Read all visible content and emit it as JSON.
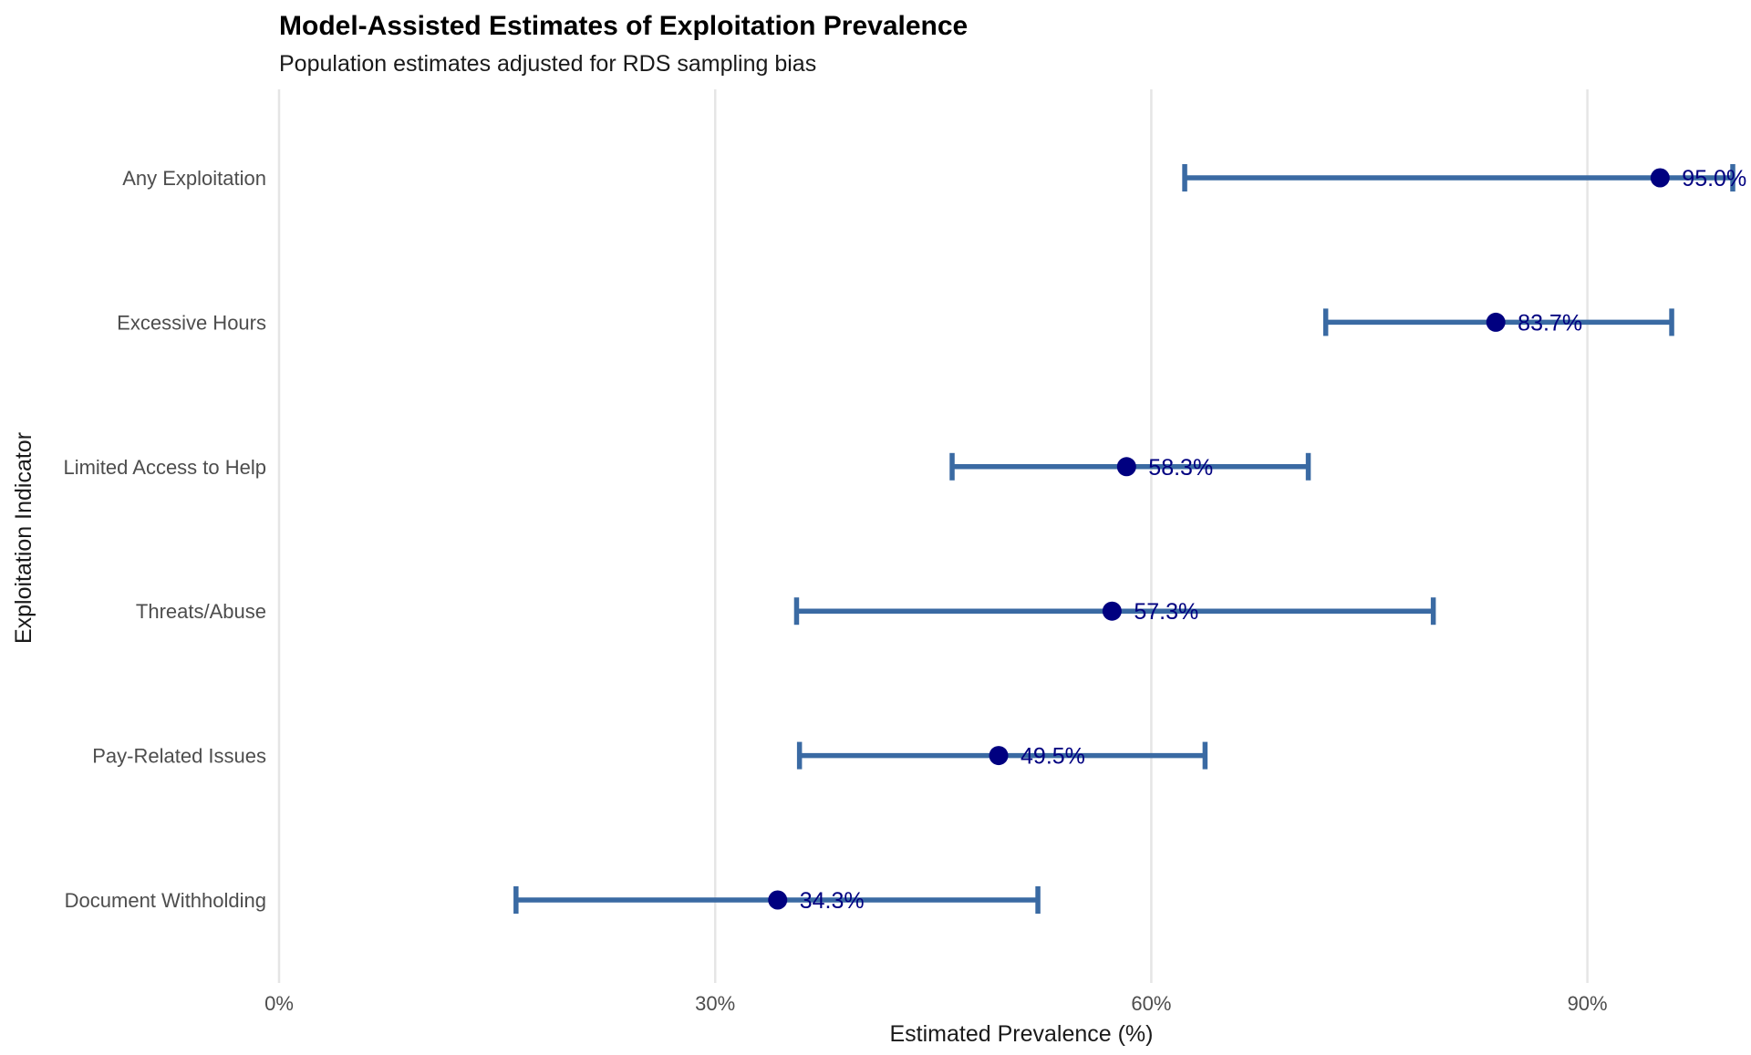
{
  "chart_data": {
    "type": "dot-errorbar",
    "title": "Model-Assisted Estimates of Exploitation Prevalence",
    "subtitle": "Population estimates adjusted for RDS sampling bias",
    "xlabel": "Estimated Prevalence (%)",
    "ylabel": "Exploitation Indicator",
    "xlim": [
      0,
      100
    ],
    "xticks": [
      0,
      30,
      60,
      90
    ],
    "xtick_labels": [
      "0%",
      "30%",
      "60%",
      "90%"
    ],
    "grid": "vertical major",
    "legend": "none",
    "categories": [
      "Any Exploitation",
      "Excessive Hours",
      "Limited Access to Help",
      "Threats/Abuse",
      "Pay-Related Issues",
      "Document Withholding"
    ],
    "estimates": [
      95.0,
      83.7,
      58.3,
      57.3,
      49.5,
      34.3
    ],
    "ci_lower": [
      62.3,
      72.0,
      46.3,
      35.6,
      35.8,
      16.3
    ],
    "ci_upper": [
      100.0,
      95.8,
      70.8,
      79.4,
      63.7,
      52.2
    ],
    "data_labels": [
      "95.0%",
      "83.7%",
      "58.3%",
      "57.3%",
      "49.5%",
      "34.3%"
    ],
    "colors": {
      "point": "#000080",
      "errorbar": "#3a6aa3",
      "label": "#000080",
      "grid": "#e5e5e5"
    }
  }
}
